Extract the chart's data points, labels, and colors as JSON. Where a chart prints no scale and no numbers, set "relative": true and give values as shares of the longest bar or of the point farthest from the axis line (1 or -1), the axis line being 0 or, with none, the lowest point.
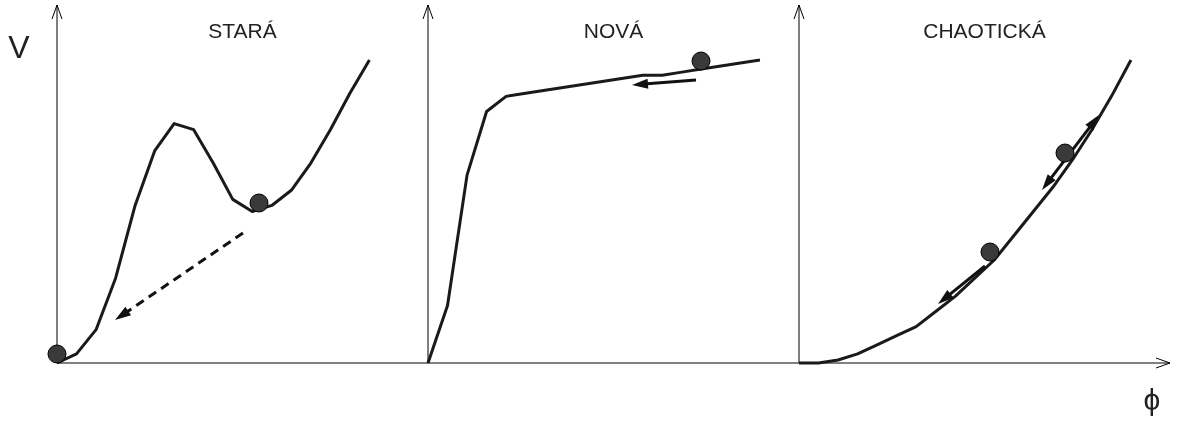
{
  "chart_data": [
    {
      "type": "line",
      "title": "STARÁ",
      "ylabel": "V",
      "relative": true,
      "categories": [
        null,
        null,
        null,
        null,
        null,
        null,
        null,
        null,
        null,
        null,
        null,
        null,
        null,
        null,
        null,
        null,
        null
      ],
      "series": [
        {
          "color": "#1a1a1a",
          "line_style": "solid",
          "values": [
            0,
            0.03,
            0.11,
            0.28,
            0.52,
            0.7,
            0.79,
            0.77,
            0.66,
            0.54,
            0.5,
            0.52,
            0.57,
            0.66,
            0.77,
            0.89,
            1
          ]
        }
      ]
    },
    {
      "type": "line",
      "title": "NOVÁ",
      "relative": true,
      "categories": [
        null,
        null,
        null,
        null,
        null,
        null,
        null,
        null,
        null,
        null,
        null,
        null,
        null,
        null,
        null,
        null,
        null,
        null
      ],
      "series": [
        {
          "color": "#1a1a1a",
          "line_style": "solid",
          "values": [
            0,
            0.19,
            0.62,
            0.83,
            0.88,
            0.89,
            0.9,
            0.91,
            0.92,
            0.93,
            0.94,
            0.95,
            0.95,
            0.96,
            0.97,
            0.98,
            0.99,
            1
          ]
        }
      ]
    },
    {
      "type": "line",
      "title": "CHAOTICKÁ",
      "xlabel": "ϕ",
      "relative": true,
      "categories": [
        null,
        null,
        null,
        null,
        null,
        null,
        null,
        null,
        null,
        null,
        null,
        null,
        null,
        null,
        null,
        null,
        null,
        null
      ],
      "series": [
        {
          "color": "#1a1a1a",
          "line_style": "solid",
          "values": [
            0,
            0,
            0.01,
            0.03,
            0.06,
            0.09,
            0.12,
            0.17,
            0.22,
            0.28,
            0.34,
            0.42,
            0.5,
            0.58,
            0.67,
            0.77,
            0.88,
            1
          ]
        }
      ]
    }
  ]
}
